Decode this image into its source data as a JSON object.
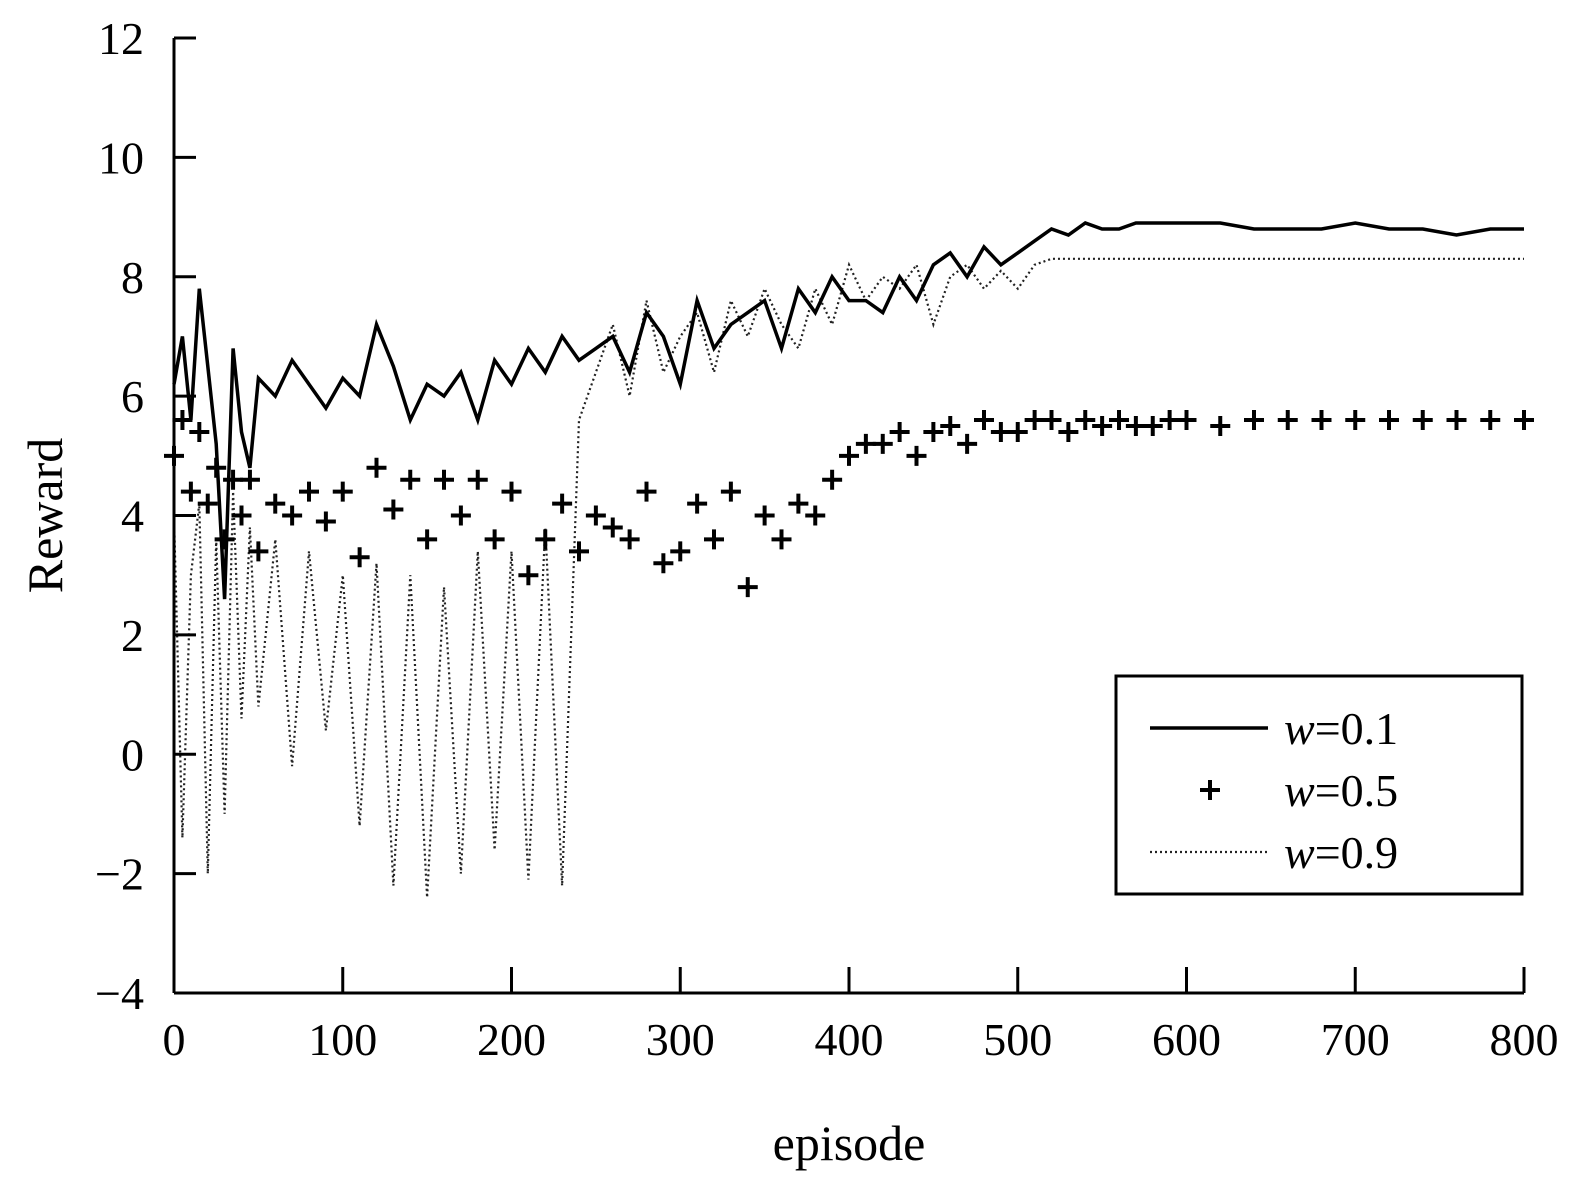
{
  "chart_data": {
    "type": "line",
    "title": "",
    "xlabel": "episode",
    "ylabel": "Reward",
    "xlim": [
      0,
      800
    ],
    "ylim": [
      -4,
      12
    ],
    "xticks": [
      "0",
      "100",
      "200",
      "300",
      "400",
      "500",
      "600",
      "700",
      "800"
    ],
    "yticks": [
      "−4",
      "−2",
      "0",
      "2",
      "4",
      "6",
      "8",
      "10",
      "12"
    ],
    "grid": false,
    "legend_position": "bottom-right",
    "legend_prefix": "w",
    "series": [
      {
        "name": "=0.1",
        "style": "solid-line",
        "color": "#000000",
        "x": [
          0,
          5,
          10,
          15,
          20,
          25,
          30,
          35,
          40,
          45,
          50,
          60,
          70,
          80,
          90,
          100,
          110,
          120,
          130,
          140,
          150,
          160,
          170,
          180,
          190,
          200,
          210,
          220,
          230,
          240,
          250,
          260,
          270,
          280,
          290,
          300,
          310,
          320,
          330,
          340,
          350,
          360,
          370,
          380,
          390,
          400,
          410,
          420,
          430,
          440,
          450,
          460,
          470,
          480,
          490,
          500,
          510,
          520,
          530,
          540,
          550,
          560,
          570,
          580,
          590,
          600,
          620,
          640,
          660,
          680,
          700,
          720,
          740,
          760,
          780,
          800
        ],
        "values": [
          6.2,
          7.0,
          5.6,
          7.8,
          6.5,
          5.2,
          2.6,
          6.8,
          5.4,
          4.8,
          6.3,
          6.0,
          6.6,
          6.2,
          5.8,
          6.3,
          6.0,
          7.2,
          6.5,
          5.6,
          6.2,
          6.0,
          6.4,
          5.6,
          6.6,
          6.2,
          6.8,
          6.4,
          7.0,
          6.6,
          6.8,
          7.0,
          6.4,
          7.4,
          7.0,
          6.2,
          7.6,
          6.8,
          7.2,
          7.4,
          7.6,
          6.8,
          7.8,
          7.4,
          8.0,
          7.6,
          7.6,
          7.4,
          8.0,
          7.6,
          8.2,
          8.4,
          8.0,
          8.5,
          8.2,
          8.4,
          8.6,
          8.8,
          8.7,
          8.9,
          8.8,
          8.8,
          8.9,
          8.9,
          8.9,
          8.9,
          8.9,
          8.8,
          8.8,
          8.8,
          8.9,
          8.8,
          8.8,
          8.7,
          8.8,
          8.8
        ]
      },
      {
        "name": "=0.5",
        "style": "plus-markers",
        "color": "#000000",
        "x": [
          0,
          5,
          10,
          15,
          20,
          25,
          30,
          35,
          40,
          45,
          50,
          60,
          70,
          80,
          90,
          100,
          110,
          120,
          130,
          140,
          150,
          160,
          170,
          180,
          190,
          200,
          210,
          220,
          230,
          240,
          250,
          260,
          270,
          280,
          290,
          300,
          310,
          320,
          330,
          340,
          350,
          360,
          370,
          380,
          390,
          400,
          410,
          420,
          430,
          440,
          450,
          460,
          470,
          480,
          490,
          500,
          510,
          520,
          530,
          540,
          550,
          560,
          570,
          580,
          590,
          600,
          620,
          640,
          660,
          680,
          700,
          720,
          740,
          760,
          780,
          800
        ],
        "values": [
          5.0,
          5.6,
          4.4,
          5.4,
          4.2,
          4.8,
          3.6,
          4.6,
          4.0,
          4.6,
          3.4,
          4.2,
          4.0,
          4.4,
          3.9,
          4.4,
          3.3,
          4.8,
          4.1,
          4.6,
          3.6,
          4.6,
          4.0,
          4.6,
          3.6,
          4.4,
          3.0,
          3.6,
          4.2,
          3.4,
          4.0,
          3.8,
          3.6,
          4.4,
          3.2,
          3.4,
          4.2,
          3.6,
          4.4,
          2.8,
          4.0,
          3.6,
          4.2,
          4.0,
          4.6,
          5.0,
          5.2,
          5.2,
          5.4,
          5.0,
          5.4,
          5.5,
          5.2,
          5.6,
          5.4,
          5.4,
          5.6,
          5.6,
          5.4,
          5.6,
          5.5,
          5.6,
          5.5,
          5.5,
          5.6,
          5.6,
          5.5,
          5.6,
          5.6,
          5.6,
          5.6,
          5.6,
          5.6,
          5.6,
          5.6,
          5.6
        ]
      },
      {
        "name": "=0.9",
        "style": "dotted-line",
        "color": "#000000",
        "x": [
          0,
          5,
          10,
          15,
          20,
          25,
          30,
          35,
          40,
          45,
          50,
          60,
          70,
          80,
          90,
          100,
          110,
          120,
          130,
          140,
          150,
          160,
          170,
          180,
          190,
          200,
          210,
          220,
          230,
          240,
          250,
          260,
          270,
          280,
          290,
          300,
          310,
          320,
          330,
          340,
          350,
          360,
          370,
          380,
          390,
          400,
          410,
          420,
          430,
          440,
          450,
          460,
          470,
          480,
          490,
          500,
          510,
          520,
          530,
          540,
          550,
          560,
          570,
          580,
          590,
          600,
          620,
          640,
          660,
          680,
          700,
          720,
          740,
          760,
          780,
          800
        ],
        "values": [
          4.0,
          -1.4,
          3.0,
          4.2,
          -2.0,
          3.6,
          -1.0,
          4.4,
          0.6,
          3.8,
          0.8,
          3.6,
          -0.2,
          3.4,
          0.4,
          3.0,
          -1.2,
          3.2,
          -2.2,
          3.0,
          -2.4,
          2.8,
          -2.0,
          3.4,
          -1.6,
          3.4,
          -2.1,
          3.8,
          -2.2,
          5.6,
          6.4,
          7.2,
          6.0,
          7.6,
          6.4,
          7.0,
          7.4,
          6.4,
          7.6,
          7.0,
          7.8,
          7.2,
          6.8,
          7.8,
          7.2,
          8.2,
          7.6,
          8.0,
          7.8,
          8.2,
          7.2,
          8.0,
          8.2,
          7.8,
          8.1,
          7.8,
          8.2,
          8.3,
          8.3,
          8.3,
          8.3,
          8.3,
          8.3,
          8.3,
          8.3,
          8.3,
          8.3,
          8.3,
          8.3,
          8.3,
          8.3,
          8.3,
          8.3,
          8.3,
          8.3,
          8.3
        ]
      }
    ]
  }
}
